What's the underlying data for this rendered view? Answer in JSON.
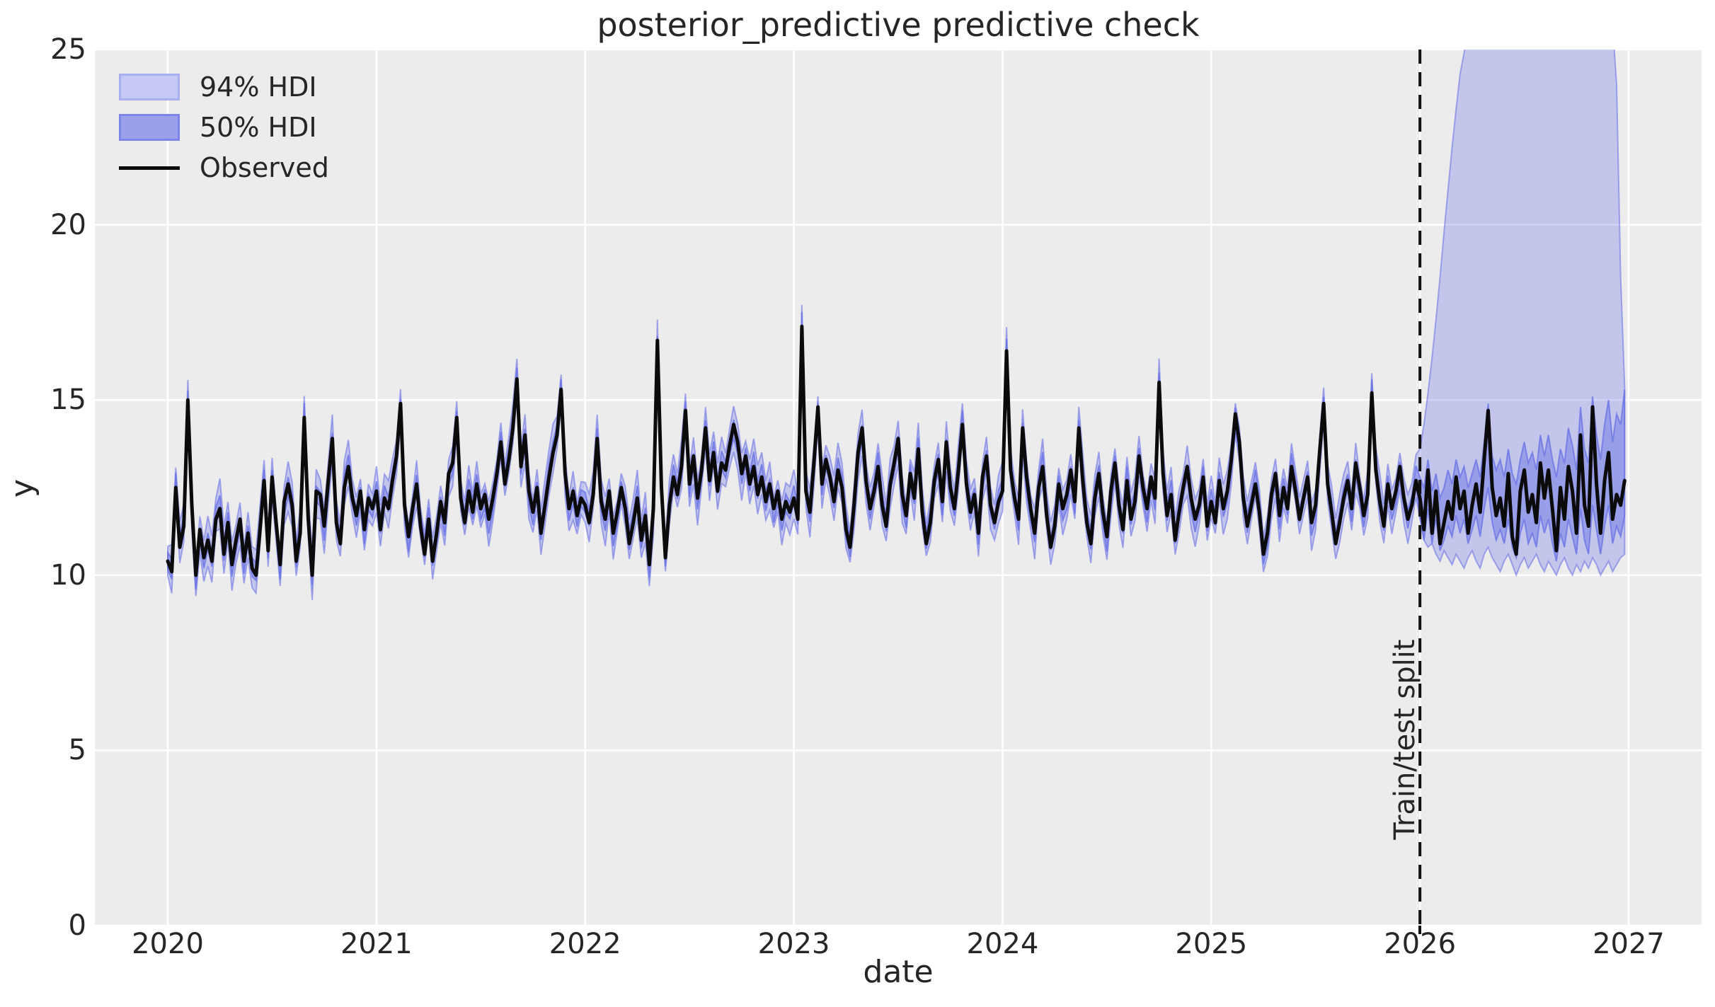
{
  "figure": {
    "title": "posterior_predictive predictive check",
    "background": "#ffffff"
  },
  "axes": {
    "xlabel": "date",
    "ylabel": "y",
    "background": "#ececec",
    "grid_color": "#ffffff",
    "text_color": "#262626",
    "xticks": [
      2020,
      2021,
      2022,
      2023,
      2024,
      2025,
      2026,
      2027
    ],
    "yticks": [
      0,
      5,
      10,
      15,
      20,
      25
    ],
    "xlim": [
      2019.65,
      2027.35
    ],
    "ylim": [
      0,
      25
    ]
  },
  "legend": {
    "items": [
      {
        "label": "94% HDI",
        "type": "patch",
        "fill": "#c5c8f2",
        "border": "#a9aeee"
      },
      {
        "label": "50% HDI",
        "type": "patch",
        "fill": "#9aa0e9",
        "border": "#7d85e6"
      },
      {
        "label": "Observed",
        "type": "line",
        "color": "#0b0b0b"
      }
    ]
  },
  "split": {
    "label": "Train/test split",
    "t": 2026.0
  },
  "chart_data": {
    "type": "line",
    "title": "posterior_predictive predictive check",
    "xlabel": "date",
    "ylabel": "y",
    "xlim": [
      2019.65,
      2027.35
    ],
    "ylim": [
      0,
      25
    ],
    "x_start": 2020.0,
    "points_per_year": 52,
    "split_t": 2026.0,
    "hdi_base_color": "#646ce6",
    "observed_color": "#0b0b0b",
    "insample_hdi": {
      "hdi94_halfwidth": 0.55,
      "hdi50_halfwidth": 0.25
    },
    "forecast_start_index": 312,
    "observed": [
      10.4,
      10.1,
      12.5,
      10.8,
      11.4,
      15.0,
      12.0,
      10.0,
      11.3,
      10.5,
      11.0,
      10.4,
      11.6,
      11.9,
      10.6,
      11.5,
      10.3,
      11.0,
      11.6,
      10.4,
      11.2,
      10.2,
      10.0,
      11.3,
      12.7,
      10.7,
      12.8,
      11.5,
      10.3,
      12.1,
      12.6,
      12.0,
      10.4,
      11.2,
      14.5,
      11.6,
      10.0,
      12.4,
      12.3,
      11.4,
      12.7,
      13.9,
      11.5,
      10.9,
      12.5,
      13.1,
      12.2,
      11.7,
      12.4,
      11.3,
      12.2,
      11.9,
      12.4,
      11.3,
      12.2,
      11.9,
      12.7,
      13.4,
      14.9,
      12.0,
      11.1,
      11.9,
      12.6,
      11.4,
      10.6,
      11.6,
      10.4,
      11.2,
      12.1,
      11.5,
      12.9,
      13.2,
      14.5,
      12.2,
      11.5,
      12.4,
      11.8,
      12.6,
      11.9,
      12.3,
      11.6,
      12.2,
      12.9,
      13.8,
      12.6,
      13.3,
      14.2,
      15.6,
      13.1,
      14.0,
      12.4,
      11.8,
      12.5,
      11.2,
      12.0,
      12.8,
      13.5,
      14.0,
      15.3,
      12.9,
      11.9,
      12.4,
      11.7,
      12.2,
      12.0,
      11.5,
      12.3,
      13.9,
      12.1,
      11.6,
      12.4,
      11.2,
      11.8,
      12.5,
      11.9,
      10.9,
      11.5,
      12.2,
      11.0,
      11.7,
      10.3,
      11.9,
      16.7,
      12.5,
      10.5,
      12.0,
      12.8,
      12.3,
      13.1,
      14.7,
      12.6,
      13.4,
      12.2,
      13.0,
      14.2,
      12.7,
      13.5,
      12.4,
      13.2,
      13.0,
      13.7,
      14.3,
      13.8,
      12.9,
      13.4,
      12.6,
      13.1,
      12.3,
      12.8,
      12.1,
      12.6,
      11.9,
      12.4,
      11.6,
      12.1,
      11.8,
      12.2,
      11.6,
      17.1,
      12.4,
      11.8,
      13.2,
      14.8,
      12.6,
      13.3,
      12.8,
      12.1,
      13.0,
      12.5,
      11.3,
      10.8,
      12.0,
      13.5,
      14.2,
      12.7,
      11.9,
      12.4,
      13.1,
      12.0,
      11.4,
      12.6,
      13.2,
      13.9,
      12.3,
      11.7,
      12.9,
      12.2,
      13.6,
      11.8,
      10.9,
      11.5,
      12.7,
      13.3,
      12.1,
      13.8,
      12.5,
      11.9,
      13.0,
      14.3,
      12.6,
      11.8,
      12.3,
      11.2,
      12.8,
      13.4,
      12.0,
      11.5,
      12.1,
      12.4,
      16.4,
      13.0,
      12.2,
      11.6,
      14.2,
      12.8,
      11.9,
      11.2,
      12.5,
      13.1,
      11.7,
      10.8,
      11.4,
      12.6,
      11.9,
      12.3,
      13.0,
      12.1,
      14.2,
      12.7,
      11.5,
      10.9,
      12.2,
      12.9,
      11.8,
      11.1,
      12.4,
      13.2,
      12.0,
      11.3,
      12.7,
      11.6,
      12.1,
      13.4,
      12.5,
      11.9,
      12.8,
      12.2,
      15.5,
      12.9,
      11.7,
      12.3,
      11.0,
      11.8,
      12.5,
      13.1,
      12.2,
      11.6,
      12.0,
      12.8,
      11.4,
      12.1,
      11.5,
      12.7,
      11.9,
      12.4,
      13.3,
      14.6,
      13.8,
      12.2,
      11.4,
      12.0,
      12.6,
      11.8,
      10.6,
      11.2,
      12.3,
      12.9,
      11.7,
      12.5,
      11.9,
      13.1,
      12.4,
      11.6,
      12.2,
      12.8,
      11.5,
      12.0,
      13.5,
      14.9,
      12.6,
      11.8,
      10.9,
      11.5,
      12.2,
      12.7,
      11.9,
      13.2,
      12.5,
      11.7,
      12.3,
      15.2,
      13.0,
      12.1,
      11.4,
      12.6,
      11.9,
      12.4,
      13.1,
      12.2,
      11.6,
      12.0,
      12.7,
      12.2,
      11.3,
      13.0,
      11.2,
      12.4,
      10.9,
      11.5,
      12.1,
      11.6,
      12.8,
      11.9,
      12.4,
      11.2,
      12.0,
      12.6,
      11.8,
      13.3,
      14.7,
      12.5,
      11.7,
      12.2,
      11.4,
      12.9,
      11.1,
      10.6,
      12.4,
      13.0,
      11.8,
      12.3,
      11.5,
      13.2,
      12.2,
      13.0,
      11.9,
      10.7,
      12.5,
      11.6,
      13.1,
      12.4,
      11.2,
      14.0,
      12.0,
      11.4,
      14.8,
      12.6,
      11.2,
      12.7,
      13.5,
      11.6,
      12.3,
      12.0,
      12.7
    ],
    "forecast_hdi94_hi": [
      13.6,
      14.3,
      15.2,
      16.2,
      17.3,
      18.5,
      19.8,
      21.0,
      22.2,
      23.3,
      24.3,
      24.9,
      25.6,
      26.5,
      27.5,
      28.5,
      29.4,
      30.2,
      31.0,
      31.7,
      32.3,
      32.8,
      33.2,
      33.5,
      33.7,
      33.8,
      33.8,
      33.7,
      33.5,
      33.2,
      32.8,
      32.3,
      31.7,
      31.0,
      30.2,
      29.4,
      28.5,
      27.5,
      26.6,
      26.0,
      25.6,
      25.4,
      25.6,
      26.0,
      26.3,
      26.0,
      25.6,
      25.3,
      25.7,
      24.0,
      18.5,
      15.4
    ],
    "forecast_hdi94_lo": [
      11.6,
      11.0,
      10.8,
      10.9,
      10.6,
      10.4,
      10.7,
      10.5,
      10.3,
      10.6,
      10.4,
      10.2,
      10.5,
      10.7,
      10.4,
      10.2,
      10.6,
      10.8,
      10.5,
      10.3,
      10.1,
      10.4,
      10.6,
      10.3,
      10.0,
      10.3,
      10.5,
      10.2,
      10.4,
      10.6,
      10.3,
      10.1,
      10.4,
      10.2,
      10.0,
      10.3,
      10.5,
      10.2,
      10.0,
      10.3,
      10.1,
      10.4,
      10.2,
      10.5,
      10.3,
      10.0,
      10.2,
      10.4,
      10.1,
      10.3,
      10.5,
      10.6
    ],
    "forecast_hdi50_hi": [
      12.8,
      12.5,
      13.3,
      12.4,
      12.9,
      12.2,
      12.5,
      13.0,
      12.6,
      13.3,
      12.8,
      13.1,
      12.5,
      12.9,
      13.3,
      12.8,
      13.8,
      14.9,
      13.4,
      13.0,
      13.3,
      12.8,
      13.6,
      12.9,
      12.6,
      13.3,
      13.8,
      13.2,
      13.5,
      13.0,
      14.0,
      13.4,
      14.0,
      13.3,
      12.8,
      13.6,
      13.2,
      14.2,
      13.7,
      13.0,
      14.8,
      13.6,
      13.2,
      15.1,
      14.0,
      13.3,
      14.3,
      15.0,
      13.8,
      14.6,
      14.3,
      15.3
    ],
    "forecast_hdi50_lo": [
      11.7,
      11.0,
      11.9,
      10.9,
      11.6,
      10.7,
      11.0,
      11.4,
      11.1,
      11.7,
      11.2,
      11.6,
      10.9,
      11.3,
      11.7,
      11.1,
      11.9,
      12.5,
      11.5,
      11.0,
      11.3,
      10.9,
      11.6,
      10.8,
      10.5,
      11.2,
      11.6,
      10.9,
      11.2,
      10.8,
      11.7,
      11.2,
      11.6,
      10.9,
      10.4,
      11.2,
      10.8,
      11.6,
      11.1,
      10.6,
      11.9,
      11.0,
      10.6,
      12.0,
      11.3,
      10.6,
      11.4,
      12.0,
      10.9,
      11.4,
      11.1,
      11.7
    ]
  }
}
